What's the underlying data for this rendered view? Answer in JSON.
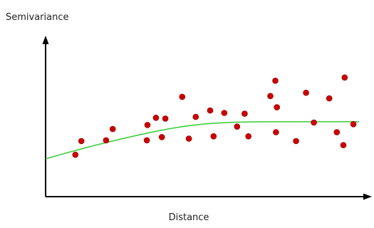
{
  "chart_data": {
    "type": "scatter",
    "xlabel": "Distance",
    "ylabel": "Semivariance",
    "xlim": [
      0,
      100
    ],
    "ylim": [
      0,
      100
    ],
    "grid": false,
    "colors": {
      "points": "#cc0000",
      "point_stroke": "#8b0000",
      "curve": "#33cc33",
      "axes": "#000000"
    },
    "points": [
      {
        "x": 9.5,
        "y": 26
      },
      {
        "x": 11.4,
        "y": 34.5
      },
      {
        "x": 19.3,
        "y": 35
      },
      {
        "x": 21.4,
        "y": 42
      },
      {
        "x": 32.3,
        "y": 35
      },
      {
        "x": 32.5,
        "y": 44.5
      },
      {
        "x": 35.2,
        "y": 49
      },
      {
        "x": 37.1,
        "y": 37
      },
      {
        "x": 38.2,
        "y": 48.5
      },
      {
        "x": 43.6,
        "y": 62
      },
      {
        "x": 45.7,
        "y": 36
      },
      {
        "x": 47.9,
        "y": 49.5
      },
      {
        "x": 52.5,
        "y": 53.5
      },
      {
        "x": 53.6,
        "y": 37.5
      },
      {
        "x": 57.0,
        "y": 52
      },
      {
        "x": 61.1,
        "y": 43.5
      },
      {
        "x": 63.5,
        "y": 51.5
      },
      {
        "x": 64.7,
        "y": 37.5
      },
      {
        "x": 71.7,
        "y": 62.5
      },
      {
        "x": 73.3,
        "y": 72
      },
      {
        "x": 73.5,
        "y": 40
      },
      {
        "x": 73.8,
        "y": 55.5
      },
      {
        "x": 79.9,
        "y": 34.5
      },
      {
        "x": 83.1,
        "y": 64.5
      },
      {
        "x": 85.6,
        "y": 46
      },
      {
        "x": 90.5,
        "y": 61
      },
      {
        "x": 92.9,
        "y": 40
      },
      {
        "x": 95.0,
        "y": 32
      },
      {
        "x": 95.4,
        "y": 74
      },
      {
        "x": 98.2,
        "y": 45
      }
    ],
    "fitted_curve": [
      {
        "x": 0,
        "y": 23.5
      },
      {
        "x": 10,
        "y": 29
      },
      {
        "x": 20,
        "y": 34
      },
      {
        "x": 30,
        "y": 38.5
      },
      {
        "x": 40,
        "y": 42.5
      },
      {
        "x": 50,
        "y": 45.2
      },
      {
        "x": 60,
        "y": 46.3
      },
      {
        "x": 70,
        "y": 46.5
      },
      {
        "x": 80,
        "y": 46.5
      },
      {
        "x": 90,
        "y": 46.5
      },
      {
        "x": 100,
        "y": 46.5
      }
    ]
  }
}
